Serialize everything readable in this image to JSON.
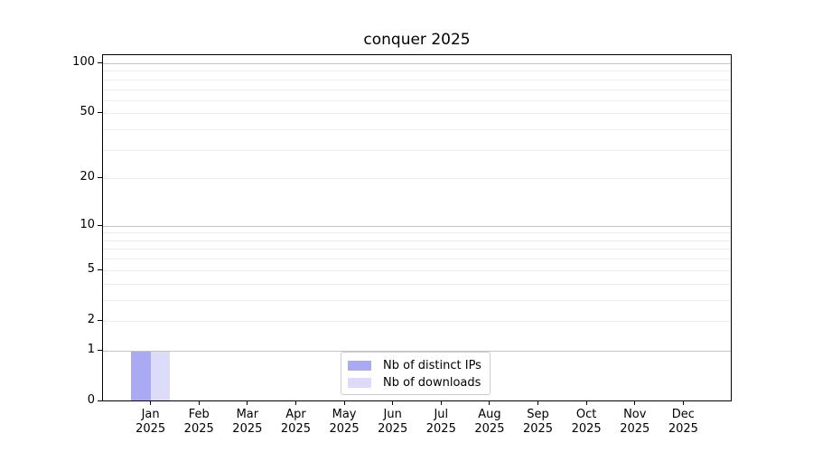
{
  "chart_data": {
    "type": "bar",
    "title": "conquer 2025",
    "categories": [
      "Jan 2025",
      "Feb 2025",
      "Mar 2025",
      "Apr 2025",
      "May 2025",
      "Jun 2025",
      "Jul 2025",
      "Aug 2025",
      "Sep 2025",
      "Oct 2025",
      "Nov 2025",
      "Dec 2025"
    ],
    "series": [
      {
        "name": "Nb of distinct IPs",
        "color": "#a9a9f4",
        "values": [
          1,
          0,
          0,
          0,
          0,
          0,
          0,
          0,
          0,
          0,
          0,
          0
        ]
      },
      {
        "name": "Nb of downloads",
        "color": "#dcdcf8",
        "values": [
          1,
          0,
          0,
          0,
          0,
          0,
          0,
          0,
          0,
          0,
          0,
          0
        ]
      }
    ],
    "xlabel": "",
    "ylabel": "",
    "yscale": "log1p",
    "ylim": [
      0,
      113.3
    ],
    "y_labeled_ticks": [
      0,
      1,
      2,
      5,
      10,
      20,
      50,
      100
    ],
    "y_major_gridlines": [
      1,
      10,
      100
    ],
    "y_minor_gridlines": [
      2,
      3,
      4,
      5,
      6,
      7,
      8,
      9,
      20,
      30,
      40,
      50,
      60,
      70,
      80,
      90
    ],
    "grid": true,
    "legend_position": "lower center",
    "colors": {
      "grid_major": "#c3c3c3",
      "grid_minor": "#ededed",
      "axis": "#000000",
      "background": "#ffffff",
      "legend_border": "#cccccc",
      "text": "#000000"
    }
  }
}
